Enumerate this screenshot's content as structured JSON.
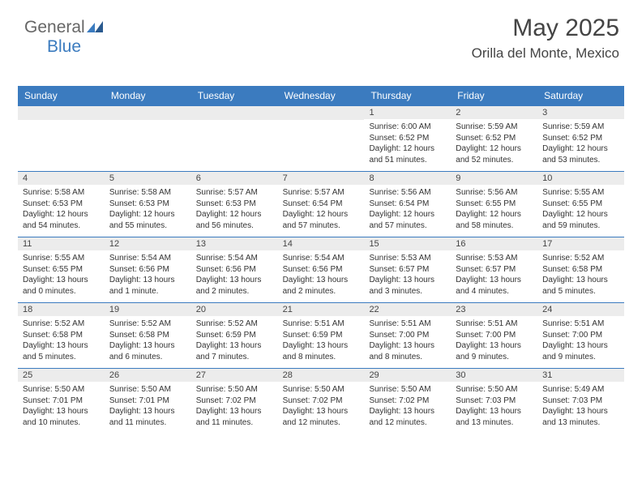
{
  "logo": {
    "part1": "General",
    "part2": "Blue"
  },
  "header": {
    "month_title": "May 2025",
    "location": "Orilla del Monte, Mexico"
  },
  "colors": {
    "header_bg": "#3b7bbf",
    "daynum_bg": "#ececec",
    "rule": "#3b7bbf",
    "text": "#333333"
  },
  "day_headers": [
    "Sunday",
    "Monday",
    "Tuesday",
    "Wednesday",
    "Thursday",
    "Friday",
    "Saturday"
  ],
  "weeks": [
    [
      {
        "empty": true
      },
      {
        "empty": true
      },
      {
        "empty": true
      },
      {
        "empty": true
      },
      {
        "n": "1",
        "sunrise": "6:00 AM",
        "sunset": "6:52 PM",
        "day_h": "12",
        "day_m": "51 minutes"
      },
      {
        "n": "2",
        "sunrise": "5:59 AM",
        "sunset": "6:52 PM",
        "day_h": "12",
        "day_m": "52 minutes"
      },
      {
        "n": "3",
        "sunrise": "5:59 AM",
        "sunset": "6:52 PM",
        "day_h": "12",
        "day_m": "53 minutes"
      }
    ],
    [
      {
        "n": "4",
        "sunrise": "5:58 AM",
        "sunset": "6:53 PM",
        "day_h": "12",
        "day_m": "54 minutes"
      },
      {
        "n": "5",
        "sunrise": "5:58 AM",
        "sunset": "6:53 PM",
        "day_h": "12",
        "day_m": "55 minutes"
      },
      {
        "n": "6",
        "sunrise": "5:57 AM",
        "sunset": "6:53 PM",
        "day_h": "12",
        "day_m": "56 minutes"
      },
      {
        "n": "7",
        "sunrise": "5:57 AM",
        "sunset": "6:54 PM",
        "day_h": "12",
        "day_m": "57 minutes"
      },
      {
        "n": "8",
        "sunrise": "5:56 AM",
        "sunset": "6:54 PM",
        "day_h": "12",
        "day_m": "57 minutes"
      },
      {
        "n": "9",
        "sunrise": "5:56 AM",
        "sunset": "6:55 PM",
        "day_h": "12",
        "day_m": "58 minutes"
      },
      {
        "n": "10",
        "sunrise": "5:55 AM",
        "sunset": "6:55 PM",
        "day_h": "12",
        "day_m": "59 minutes"
      }
    ],
    [
      {
        "n": "11",
        "sunrise": "5:55 AM",
        "sunset": "6:55 PM",
        "day_h": "13",
        "day_m": "0 minutes"
      },
      {
        "n": "12",
        "sunrise": "5:54 AM",
        "sunset": "6:56 PM",
        "day_h": "13",
        "day_m": "1 minute"
      },
      {
        "n": "13",
        "sunrise": "5:54 AM",
        "sunset": "6:56 PM",
        "day_h": "13",
        "day_m": "2 minutes"
      },
      {
        "n": "14",
        "sunrise": "5:54 AM",
        "sunset": "6:56 PM",
        "day_h": "13",
        "day_m": "2 minutes"
      },
      {
        "n": "15",
        "sunrise": "5:53 AM",
        "sunset": "6:57 PM",
        "day_h": "13",
        "day_m": "3 minutes"
      },
      {
        "n": "16",
        "sunrise": "5:53 AM",
        "sunset": "6:57 PM",
        "day_h": "13",
        "day_m": "4 minutes"
      },
      {
        "n": "17",
        "sunrise": "5:52 AM",
        "sunset": "6:58 PM",
        "day_h": "13",
        "day_m": "5 minutes"
      }
    ],
    [
      {
        "n": "18",
        "sunrise": "5:52 AM",
        "sunset": "6:58 PM",
        "day_h": "13",
        "day_m": "5 minutes"
      },
      {
        "n": "19",
        "sunrise": "5:52 AM",
        "sunset": "6:58 PM",
        "day_h": "13",
        "day_m": "6 minutes"
      },
      {
        "n": "20",
        "sunrise": "5:52 AM",
        "sunset": "6:59 PM",
        "day_h": "13",
        "day_m": "7 minutes"
      },
      {
        "n": "21",
        "sunrise": "5:51 AM",
        "sunset": "6:59 PM",
        "day_h": "13",
        "day_m": "8 minutes"
      },
      {
        "n": "22",
        "sunrise": "5:51 AM",
        "sunset": "7:00 PM",
        "day_h": "13",
        "day_m": "8 minutes"
      },
      {
        "n": "23",
        "sunrise": "5:51 AM",
        "sunset": "7:00 PM",
        "day_h": "13",
        "day_m": "9 minutes"
      },
      {
        "n": "24",
        "sunrise": "5:51 AM",
        "sunset": "7:00 PM",
        "day_h": "13",
        "day_m": "9 minutes"
      }
    ],
    [
      {
        "n": "25",
        "sunrise": "5:50 AM",
        "sunset": "7:01 PM",
        "day_h": "13",
        "day_m": "10 minutes"
      },
      {
        "n": "26",
        "sunrise": "5:50 AM",
        "sunset": "7:01 PM",
        "day_h": "13",
        "day_m": "11 minutes"
      },
      {
        "n": "27",
        "sunrise": "5:50 AM",
        "sunset": "7:02 PM",
        "day_h": "13",
        "day_m": "11 minutes"
      },
      {
        "n": "28",
        "sunrise": "5:50 AM",
        "sunset": "7:02 PM",
        "day_h": "13",
        "day_m": "12 minutes"
      },
      {
        "n": "29",
        "sunrise": "5:50 AM",
        "sunset": "7:02 PM",
        "day_h": "13",
        "day_m": "12 minutes"
      },
      {
        "n": "30",
        "sunrise": "5:50 AM",
        "sunset": "7:03 PM",
        "day_h": "13",
        "day_m": "13 minutes"
      },
      {
        "n": "31",
        "sunrise": "5:49 AM",
        "sunset": "7:03 PM",
        "day_h": "13",
        "day_m": "13 minutes"
      }
    ]
  ],
  "labels": {
    "sunrise_prefix": "Sunrise: ",
    "sunset_prefix": "Sunset: ",
    "daylight_prefix": "Daylight: ",
    "hours_word": " hours",
    "and_word": "and ",
    "period": "."
  }
}
